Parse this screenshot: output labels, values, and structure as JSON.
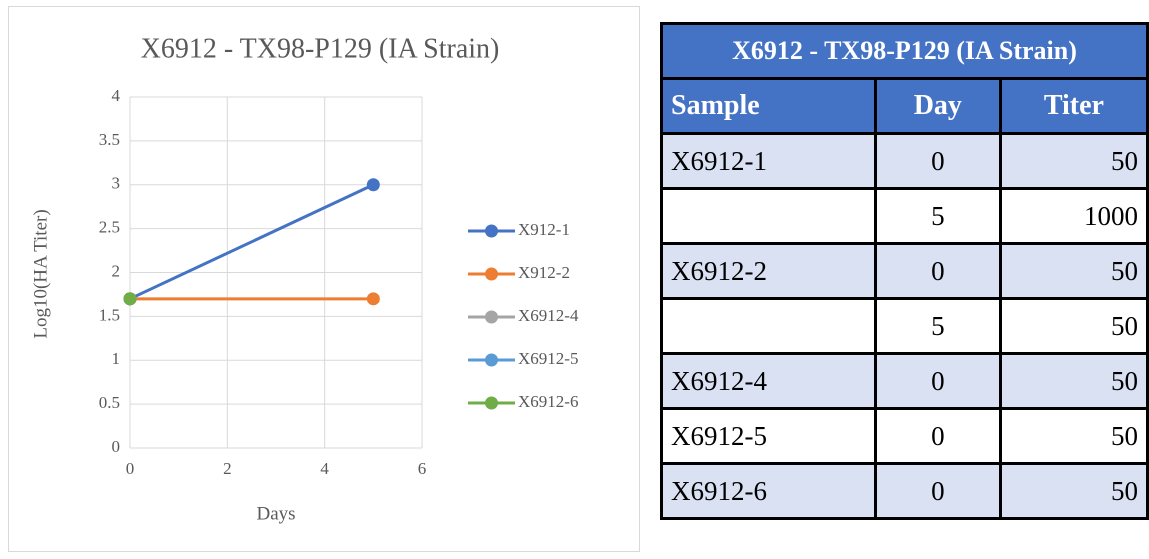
{
  "chart_data": {
    "type": "line",
    "title": "X6912 -  TX98-P129 (IA Strain)",
    "x_label": "Days",
    "y_label": "Log10(HA Titer)",
    "x": [
      0,
      5
    ],
    "series": [
      {
        "name": "X912-1",
        "color": "#4472c4",
        "values": [
          1.7,
          3.0
        ]
      },
      {
        "name": "X912-2",
        "color": "#ed7d31",
        "values": [
          1.7,
          1.7
        ]
      },
      {
        "name": "X6912-4",
        "color": "#a5a5a5",
        "values": [
          1.7,
          null
        ]
      },
      {
        "name": "X6912-5",
        "color": "#5b9bd5",
        "values": [
          1.7,
          null
        ]
      },
      {
        "name": "X6912-6",
        "color": "#70ad47",
        "values": [
          1.7,
          null
        ]
      }
    ],
    "xlim": [
      0,
      6
    ],
    "xticks": [
      0,
      2,
      4,
      6
    ],
    "ylim": [
      0,
      4
    ],
    "yticks": [
      0,
      0.5,
      1,
      1.5,
      2,
      2.5,
      3,
      3.5,
      4
    ],
    "grid": true,
    "legend": "right"
  },
  "table": {
    "title": "X6912 - TX98-P129 (IA Strain)",
    "header": [
      "Sample",
      "Day",
      "Titer"
    ],
    "rows": [
      [
        "X6912-1",
        0,
        50
      ],
      [
        null,
        5,
        1000
      ],
      [
        "X6912-2",
        0,
        50
      ],
      [
        null,
        5,
        50
      ],
      [
        "X6912-4",
        0,
        50
      ],
      [
        "X6912-5",
        0,
        50
      ],
      [
        "X6912-6",
        0,
        50
      ]
    ]
  }
}
